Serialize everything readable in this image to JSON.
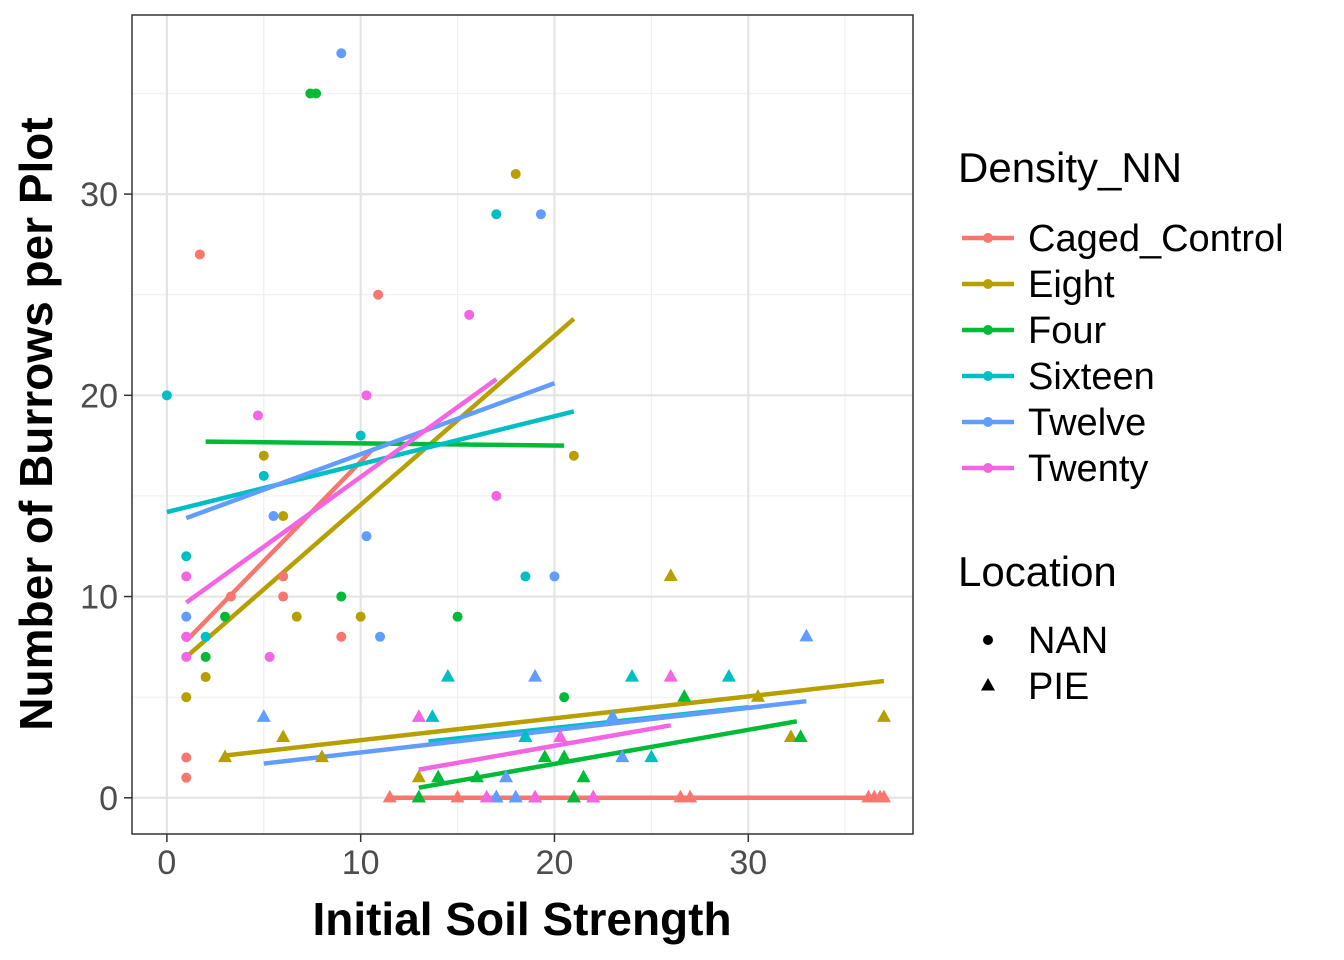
{
  "chart_data": {
    "type": "scatter",
    "title": "",
    "xlabel": "Initial Soil Strength",
    "ylabel": "Number of Burrows per Plot",
    "xlim": [
      -1.8,
      38.5
    ],
    "ylim": [
      -1.8,
      38.9
    ],
    "xticks": [
      0,
      10,
      20,
      30
    ],
    "yticks": [
      0,
      10,
      20,
      30
    ],
    "grid": true,
    "legend_position": "right",
    "color_legend": {
      "title": "Density_NN",
      "entries": [
        {
          "name": "Caged_Control",
          "color": "#F8766D"
        },
        {
          "name": "Eight",
          "color": "#B79F00"
        },
        {
          "name": "Four",
          "color": "#00BA38"
        },
        {
          "name": "Sixteen",
          "color": "#00BFC4"
        },
        {
          "name": "Twelve",
          "color": "#619CFF"
        },
        {
          "name": "Twenty",
          "color": "#F564E3"
        }
      ]
    },
    "shape_legend": {
      "title": "Location",
      "entries": [
        {
          "name": "NAN",
          "shape": "circle"
        },
        {
          "name": "PIE",
          "shape": "triangle"
        }
      ]
    },
    "series": [
      {
        "name": "Caged_Control",
        "color": "#F8766D",
        "NAN": [
          [
            1.7,
            27
          ],
          [
            10.9,
            25
          ],
          [
            3.3,
            10
          ],
          [
            6,
            11
          ],
          [
            6,
            10
          ],
          [
            9,
            8
          ],
          [
            1,
            8
          ],
          [
            1,
            2
          ],
          [
            1,
            1
          ]
        ],
        "PIE": [
          [
            11.5,
            0
          ],
          [
            13,
            0
          ],
          [
            15,
            0
          ],
          [
            17,
            0
          ],
          [
            18,
            0
          ],
          [
            19,
            0
          ],
          [
            21,
            0
          ],
          [
            22,
            0
          ],
          [
            26.5,
            0
          ],
          [
            27,
            0
          ],
          [
            36.2,
            0
          ],
          [
            36.5,
            0
          ],
          [
            36.8,
            0
          ],
          [
            37,
            0
          ]
        ],
        "fit_NAN": [
          [
            1,
            7.8
          ],
          [
            10.6,
            17.3
          ]
        ],
        "fit_PIE": [
          [
            11.5,
            0
          ],
          [
            37,
            0
          ]
        ]
      },
      {
        "name": "Eight",
        "color": "#B79F00",
        "NAN": [
          [
            18,
            31
          ],
          [
            5,
            17
          ],
          [
            21,
            17
          ],
          [
            6,
            14
          ],
          [
            10,
            9
          ],
          [
            6.7,
            9
          ],
          [
            2,
            6
          ],
          [
            1,
            5
          ]
        ],
        "PIE": [
          [
            26,
            11
          ],
          [
            37,
            4
          ],
          [
            30.5,
            5
          ],
          [
            32.2,
            3
          ],
          [
            6,
            3
          ],
          [
            3,
            2
          ],
          [
            8,
            2
          ],
          [
            13,
            1
          ]
        ],
        "fit_NAN": [
          [
            1,
            7
          ],
          [
            21,
            23.8
          ]
        ],
        "fit_PIE": [
          [
            3,
            2.1
          ],
          [
            37,
            5.8
          ]
        ]
      },
      {
        "name": "Four",
        "color": "#00BA38",
        "NAN": [
          [
            7.4,
            35
          ],
          [
            7.7,
            35
          ],
          [
            9,
            10
          ],
          [
            15,
            9
          ],
          [
            3,
            9
          ],
          [
            2,
            7
          ],
          [
            20.5,
            5
          ]
        ],
        "PIE": [
          [
            26.7,
            5
          ],
          [
            32.7,
            3
          ],
          [
            18.5,
            3
          ],
          [
            19.5,
            2
          ],
          [
            20.5,
            2
          ],
          [
            14,
            1
          ],
          [
            16,
            1
          ],
          [
            21.5,
            1
          ],
          [
            13,
            0
          ],
          [
            21,
            0
          ]
        ],
        "fit_NAN": [
          [
            2,
            17.7
          ],
          [
            20.5,
            17.5
          ]
        ],
        "fit_PIE": [
          [
            13,
            0.5
          ],
          [
            32.5,
            3.8
          ]
        ]
      },
      {
        "name": "Sixteen",
        "color": "#00BFC4",
        "NAN": [
          [
            17,
            29
          ],
          [
            0,
            20
          ],
          [
            10,
            18
          ],
          [
            5,
            16
          ],
          [
            1,
            12
          ],
          [
            18.5,
            11
          ],
          [
            2,
            8
          ]
        ],
        "PIE": [
          [
            14.5,
            6
          ],
          [
            24,
            6
          ],
          [
            29,
            6
          ],
          [
            13.7,
            4
          ],
          [
            23,
            4
          ],
          [
            18.5,
            3
          ],
          [
            25,
            2
          ],
          [
            17,
            0
          ]
        ],
        "fit_NAN": [
          [
            0,
            14.2
          ],
          [
            21,
            19.2
          ]
        ],
        "fit_PIE": [
          [
            13.5,
            2.8
          ],
          [
            30,
            4.5
          ]
        ]
      },
      {
        "name": "Twelve",
        "color": "#619CFF",
        "NAN": [
          [
            9,
            37
          ],
          [
            19.3,
            29
          ],
          [
            10.3,
            13
          ],
          [
            20,
            11
          ],
          [
            5.5,
            14
          ],
          [
            11,
            8
          ],
          [
            1,
            9
          ]
        ],
        "PIE": [
          [
            33,
            8
          ],
          [
            19,
            6
          ],
          [
            5,
            4
          ],
          [
            23,
            4
          ],
          [
            17.5,
            1
          ],
          [
            23.5,
            2
          ],
          [
            18,
            0
          ],
          [
            17,
            0
          ]
        ],
        "fit_NAN": [
          [
            1,
            13.9
          ],
          [
            20,
            20.6
          ]
        ],
        "fit_PIE": [
          [
            5,
            1.7
          ],
          [
            33,
            4.8
          ]
        ]
      },
      {
        "name": "Twenty",
        "color": "#F564E3",
        "NAN": [
          [
            15.6,
            24
          ],
          [
            10.3,
            20
          ],
          [
            4.7,
            19
          ],
          [
            17,
            15
          ],
          [
            1,
            11
          ],
          [
            5.3,
            7
          ],
          [
            1,
            8
          ],
          [
            1,
            7
          ]
        ],
        "PIE": [
          [
            26,
            6
          ],
          [
            13,
            4
          ],
          [
            20.3,
            3
          ],
          [
            16.5,
            0
          ],
          [
            19,
            0
          ],
          [
            22,
            0
          ]
        ],
        "fit_NAN": [
          [
            1,
            9.7
          ],
          [
            17,
            20.8
          ]
        ],
        "fit_PIE": [
          [
            13,
            1.4
          ],
          [
            26,
            3.6
          ]
        ]
      }
    ]
  }
}
